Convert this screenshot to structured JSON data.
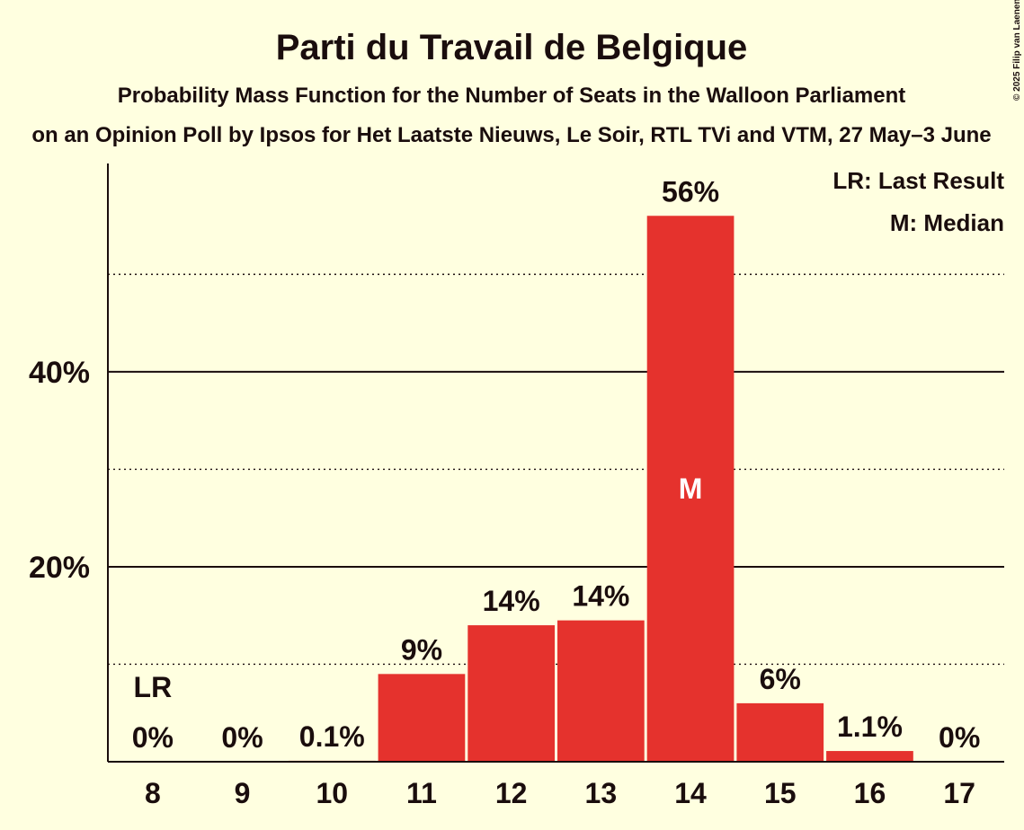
{
  "chart_data": {
    "type": "bar",
    "title": "Parti du Travail de Belgique",
    "subtitle": "Probability Mass Function for the Number of Seats in the Walloon Parliament",
    "subtitle2": "on an Opinion Poll by Ipsos for Het Laatste Nieuws, Le Soir, RTL TVi and VTM, 27 May–3 June",
    "copyright": "© 2025 Filip van Laenen",
    "categories": [
      "8",
      "9",
      "10",
      "11",
      "12",
      "13",
      "14",
      "15",
      "16",
      "17"
    ],
    "values": [
      0,
      0,
      0.1,
      9,
      14,
      14.5,
      56,
      6,
      1.1,
      0
    ],
    "labels": [
      "0%",
      "0%",
      "0.1%",
      "9%",
      "14%",
      "14%",
      "56%",
      "6%",
      "1.1%",
      "0%"
    ],
    "ylim": [
      0,
      61
    ],
    "yticks": [
      {
        "value": 20,
        "label": "20%"
      },
      {
        "value": 40,
        "label": "40%"
      }
    ],
    "minor_gridlines": [
      10,
      30,
      50
    ],
    "last_result": {
      "category": "8",
      "label": "LR"
    },
    "median": {
      "category": "14",
      "label": "M"
    },
    "legend": {
      "position": "top-right",
      "items": [
        "LR: Last Result",
        "M: Median"
      ]
    },
    "colors": {
      "bar": "#e5322d",
      "background": "#ffffe0",
      "text": "#1a0d0d"
    }
  }
}
